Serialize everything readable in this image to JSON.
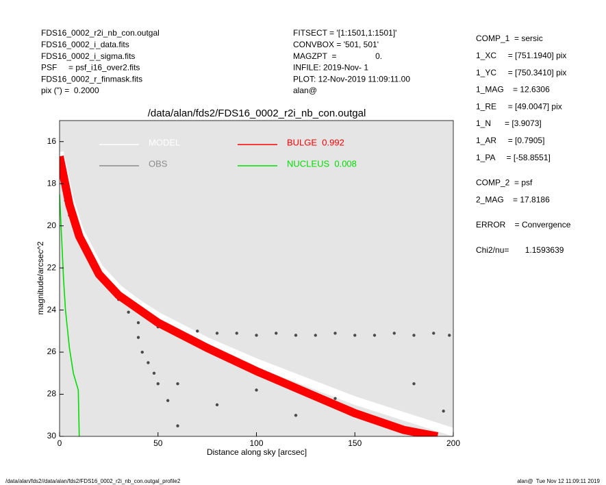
{
  "header": {
    "left": [
      "FDS16_0002_r2i_nb_con.outgal",
      "FDS16_0002_i_data.fits",
      "FDS16_0002_i_sigma.fits",
      "PSF     = psf_i16_over2.fits",
      "FDS16_0002_r_finmask.fits",
      "pix (\") =  0.2000"
    ],
    "middle": [
      "FITSECT = '[1:1501,1:1501]'",
      "CONVBOX = '501, 501'",
      "MAGZPT  =                 0.",
      "INFILE: 2019-Nov- 1",
      "PLOT: 12-Nov-2019 11:09:11.00",
      "alan@"
    ],
    "right": [
      [
        "COMP_1  = sersic",
        "1_XC     = [751.1940] pix",
        "1_YC     = [750.3410] pix",
        "1_MAG    = 12.6306",
        "1_RE     = [49.0047] pix",
        "1_N      = [3.9073]",
        "1_AR     = [0.7905]",
        "1_PA     = [-58.8551]"
      ],
      [
        "COMP_2  = psf",
        "2_MAG    = 17.8186"
      ],
      [
        "ERROR    = Convergence"
      ],
      [
        "Chi2/nu=       1.1593639"
      ]
    ]
  },
  "footer": {
    "left": "/data/alan/fds2//data/alan/fds2/FDS16_0002_r2i_nb_con.outgal_profile2",
    "right": "alan@  Tue Nov 12 11:09:11 2019"
  },
  "chart_data": {
    "type": "scatter",
    "title": "/data/alan/fds2/FDS16_0002_r2i_nb_con.outgal",
    "x_label": "Distance along sky [arcsec]",
    "y_label": "magnitude/arcsec^2",
    "xlim": [
      0,
      200
    ],
    "xticks": [
      0,
      50,
      100,
      150,
      200
    ],
    "ylim": [
      30,
      15
    ],
    "yticks": [
      16,
      18,
      20,
      22,
      24,
      26,
      28,
      30
    ],
    "y_inverted": true,
    "background": "#e5e5e5",
    "series": [
      {
        "name": "MODEL",
        "color": "#ffffff",
        "kind": "line",
        "band": true,
        "x": [
          0,
          5,
          10,
          20,
          30,
          40,
          50,
          75,
          100,
          150,
          200
        ],
        "y": [
          16.5,
          18.7,
          20.2,
          22,
          23,
          23.7,
          24.3,
          25.5,
          26.5,
          28.3,
          29.8
        ]
      },
      {
        "name": "OBS",
        "color": "#8c8c8c",
        "point_color": "#4a4a4a",
        "kind": "scatter",
        "x": [
          0.5,
          1,
          2,
          3,
          5,
          8,
          10,
          12,
          15,
          18,
          20,
          25,
          30,
          35,
          40,
          42,
          45,
          48,
          50,
          55,
          60,
          40,
          50,
          60,
          70,
          80,
          90,
          100,
          110,
          120,
          130,
          140,
          150,
          160,
          170,
          180,
          190,
          198,
          60,
          80,
          100,
          120,
          140,
          160,
          180,
          195
        ],
        "y": [
          16.8,
          17.5,
          18.2,
          18.8,
          19.5,
          20.3,
          20.7,
          21.1,
          21.6,
          22,
          22.3,
          22.9,
          23.5,
          24.1,
          25.3,
          26,
          26.5,
          27,
          27.5,
          28.3,
          29.5,
          24.6,
          24.8,
          25,
          25,
          25.1,
          25.1,
          25.2,
          25.1,
          25.2,
          25.2,
          25.1,
          25.2,
          25.2,
          25.1,
          25.2,
          25.1,
          25.2,
          27.5,
          28.5,
          27.8,
          29,
          28.2,
          29.3,
          27.5,
          28.8
        ]
      },
      {
        "name": "BULGE  0.992",
        "color": "#ff0000",
        "kind": "line",
        "band": true,
        "x": [
          0,
          5,
          10,
          20,
          30,
          50,
          75,
          100,
          125,
          150,
          175,
          192
        ],
        "y": [
          16.7,
          19,
          20.5,
          22.3,
          23.3,
          24.6,
          25.8,
          26.9,
          27.9,
          28.9,
          29.7,
          30
        ]
      },
      {
        "name": "NUCLEUS  0.008",
        "color": "#00dd00",
        "kind": "line",
        "band": false,
        "x": [
          0,
          1,
          2,
          3,
          5,
          7,
          9.5,
          10
        ],
        "y": [
          18.5,
          20.5,
          22.5,
          24,
          25.8,
          27,
          27.8,
          30
        ]
      }
    ]
  }
}
